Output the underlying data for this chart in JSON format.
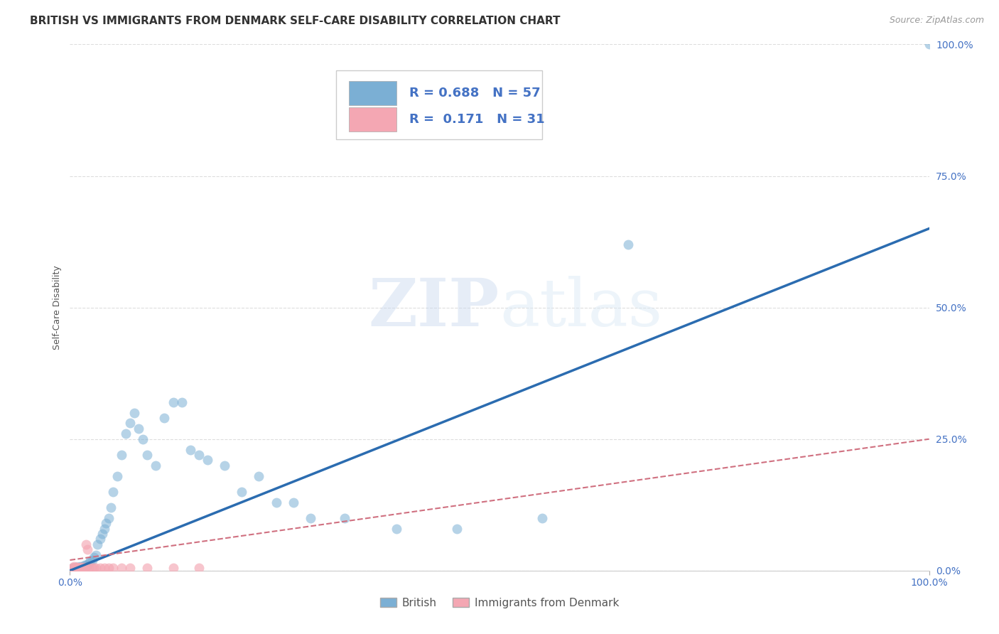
{
  "title": "BRITISH VS IMMIGRANTS FROM DENMARK SELF-CARE DISABILITY CORRELATION CHART",
  "source": "Source: ZipAtlas.com",
  "ylabel": "Self-Care Disability",
  "xlabel": "",
  "xlim": [
    0,
    1
  ],
  "ylim": [
    0,
    1
  ],
  "xtick_labels": [
    "0.0%",
    "100.0%"
  ],
  "ytick_labels": [
    "0.0%",
    "25.0%",
    "50.0%",
    "75.0%",
    "100.0%"
  ],
  "ytick_positions": [
    0.0,
    0.25,
    0.5,
    0.75,
    1.0
  ],
  "xtick_positions": [
    0.0,
    1.0
  ],
  "watermark_zip": "ZIP",
  "watermark_atlas": "atlas",
  "blue_R": "0.688",
  "blue_N": "57",
  "pink_R": "0.171",
  "pink_N": "31",
  "blue_color": "#7BAFD4",
  "pink_color": "#F4A7B3",
  "line_blue_color": "#2B6CB0",
  "line_pink_color": "#D07080",
  "background_color": "#ffffff",
  "blue_scatter_x": [
    0.003,
    0.005,
    0.006,
    0.007,
    0.008,
    0.009,
    0.01,
    0.011,
    0.012,
    0.013,
    0.014,
    0.015,
    0.016,
    0.017,
    0.018,
    0.019,
    0.02,
    0.022,
    0.024,
    0.026,
    0.028,
    0.03,
    0.032,
    0.035,
    0.038,
    0.04,
    0.042,
    0.045,
    0.048,
    0.05,
    0.055,
    0.06,
    0.065,
    0.07,
    0.075,
    0.08,
    0.085,
    0.09,
    0.1,
    0.11,
    0.12,
    0.13,
    0.14,
    0.15,
    0.16,
    0.18,
    0.2,
    0.22,
    0.24,
    0.26,
    0.28,
    0.32,
    0.38,
    0.45,
    0.55,
    0.65,
    1.0
  ],
  "blue_scatter_y": [
    0.005,
    0.005,
    0.005,
    0.006,
    0.005,
    0.006,
    0.007,
    0.005,
    0.008,
    0.006,
    0.006,
    0.008,
    0.007,
    0.01,
    0.008,
    0.01,
    0.01,
    0.015,
    0.018,
    0.02,
    0.025,
    0.03,
    0.05,
    0.06,
    0.07,
    0.08,
    0.09,
    0.1,
    0.12,
    0.15,
    0.18,
    0.22,
    0.26,
    0.28,
    0.3,
    0.27,
    0.25,
    0.22,
    0.2,
    0.29,
    0.32,
    0.32,
    0.23,
    0.22,
    0.21,
    0.2,
    0.15,
    0.18,
    0.13,
    0.13,
    0.1,
    0.1,
    0.08,
    0.08,
    0.1,
    0.62,
    1.0
  ],
  "pink_scatter_x": [
    0.003,
    0.004,
    0.005,
    0.006,
    0.007,
    0.008,
    0.009,
    0.01,
    0.011,
    0.012,
    0.013,
    0.014,
    0.015,
    0.016,
    0.017,
    0.018,
    0.019,
    0.02,
    0.022,
    0.025,
    0.028,
    0.03,
    0.035,
    0.04,
    0.045,
    0.05,
    0.06,
    0.07,
    0.09,
    0.12,
    0.15
  ],
  "pink_scatter_y": [
    0.005,
    0.005,
    0.008,
    0.005,
    0.006,
    0.007,
    0.005,
    0.005,
    0.006,
    0.005,
    0.005,
    0.006,
    0.005,
    0.005,
    0.006,
    0.005,
    0.05,
    0.04,
    0.005,
    0.005,
    0.005,
    0.005,
    0.005,
    0.005,
    0.005,
    0.005,
    0.005,
    0.005,
    0.005,
    0.005,
    0.005
  ],
  "blue_line_x0": 0.0,
  "blue_line_x1": 1.0,
  "blue_line_y0": 0.0,
  "blue_line_y1": 0.65,
  "pink_line_x0": 0.0,
  "pink_line_x1": 1.0,
  "pink_line_y0": 0.02,
  "pink_line_y1": 0.25,
  "grid_color": "#DDDDDD",
  "grid_linestyle": "--",
  "title_fontsize": 11,
  "axis_label_fontsize": 9,
  "tick_fontsize": 10,
  "legend_fontsize": 13
}
